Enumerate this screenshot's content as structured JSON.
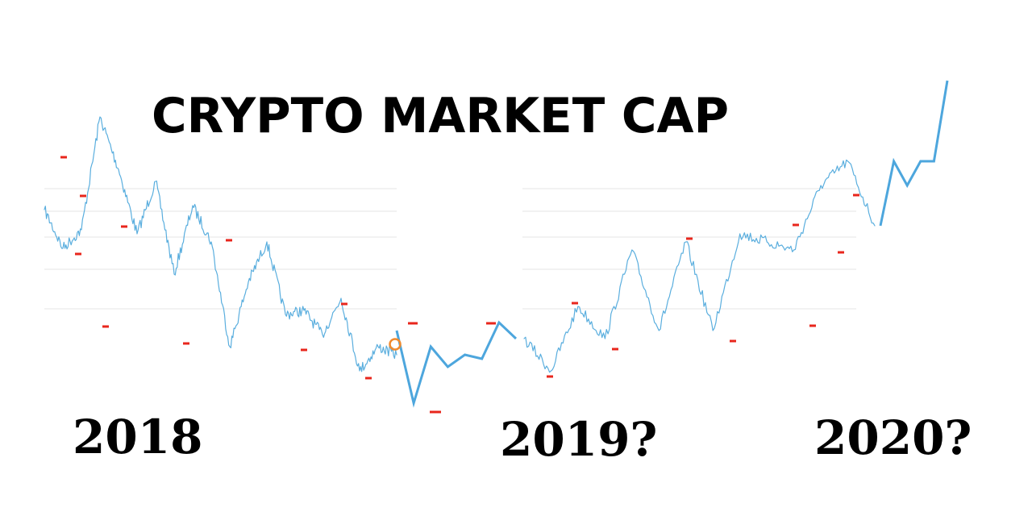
{
  "chart_data": {
    "type": "line",
    "title": "CRYPTO MARKET CAP",
    "xlabel": "",
    "ylabel": "",
    "grid": true,
    "legend": "none",
    "period_labels": [
      "2018",
      "2019?",
      "2020?"
    ],
    "colors": {
      "history_line": "#5aaede",
      "projection_line": "#4da6dd",
      "extrema_marker": "#e8261c",
      "current_point": "#f08a2e",
      "grid": "#e6e6e6",
      "text": "#000000"
    },
    "series": [
      {
        "values": [
          260,
          308,
          285,
          145,
          210,
          290,
          225,
          340,
          255,
          300,
          430,
          350,
          300,
          390,
          385,
          415,
          370,
          460,
          430,
          440
        ]
      },
      {
        "values": [
          410,
          500,
          430,
          455,
          440,
          445,
          400,
          420
        ]
      },
      {
        "values": [
          420,
          460,
          380,
          420,
          310,
          410,
          300,
          410,
          290,
          300,
          310,
          230,
          200,
          280
        ]
      },
      {
        "values": [
          280,
          200,
          230,
          200,
          200,
          100
        ]
      }
    ],
    "extrema": {
      "peaks": [
        195,
        243,
        281,
        298,
        377,
        401,
        401,
        376,
        296,
        279,
        242,
        193
      ],
      "troughs": [
        315,
        405,
        426,
        434,
        469,
        511,
        467,
        433,
        423,
        404,
        313
      ]
    },
    "current_value": 427
  }
}
